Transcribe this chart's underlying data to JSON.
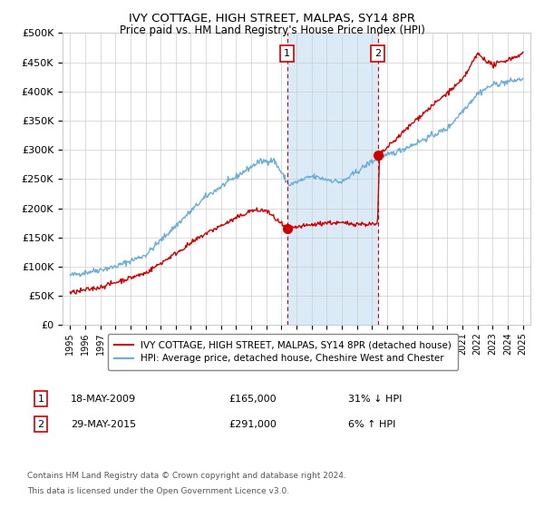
{
  "title": "IVY COTTAGE, HIGH STREET, MALPAS, SY14 8PR",
  "subtitle": "Price paid vs. HM Land Registry's House Price Index (HPI)",
  "legend_line1": "IVY COTTAGE, HIGH STREET, MALPAS, SY14 8PR (detached house)",
  "legend_line2": "HPI: Average price, detached house, Cheshire West and Chester",
  "annotation1": {
    "label": "1",
    "date": "18-MAY-2009",
    "price": 165000,
    "hpi_pct": "31% ↓ HPI",
    "x_year": 2009.38
  },
  "annotation2": {
    "label": "2",
    "date": "29-MAY-2015",
    "price": 291000,
    "hpi_pct": "6% ↑ HPI",
    "x_year": 2015.38
  },
  "footer1": "Contains HM Land Registry data © Crown copyright and database right 2024.",
  "footer2": "This data is licensed under the Open Government Licence v3.0.",
  "hpi_color": "#6baed6",
  "price_color": "#cc0000",
  "background_color": "#ffffff",
  "grid_color": "#cccccc",
  "shaded_region_color": "#daeaf7",
  "ylim": [
    0,
    500000
  ],
  "yticks": [
    0,
    50000,
    100000,
    150000,
    200000,
    250000,
    300000,
    350000,
    400000,
    450000,
    500000
  ],
  "xlim_start": 1994.5,
  "xlim_end": 2025.5
}
